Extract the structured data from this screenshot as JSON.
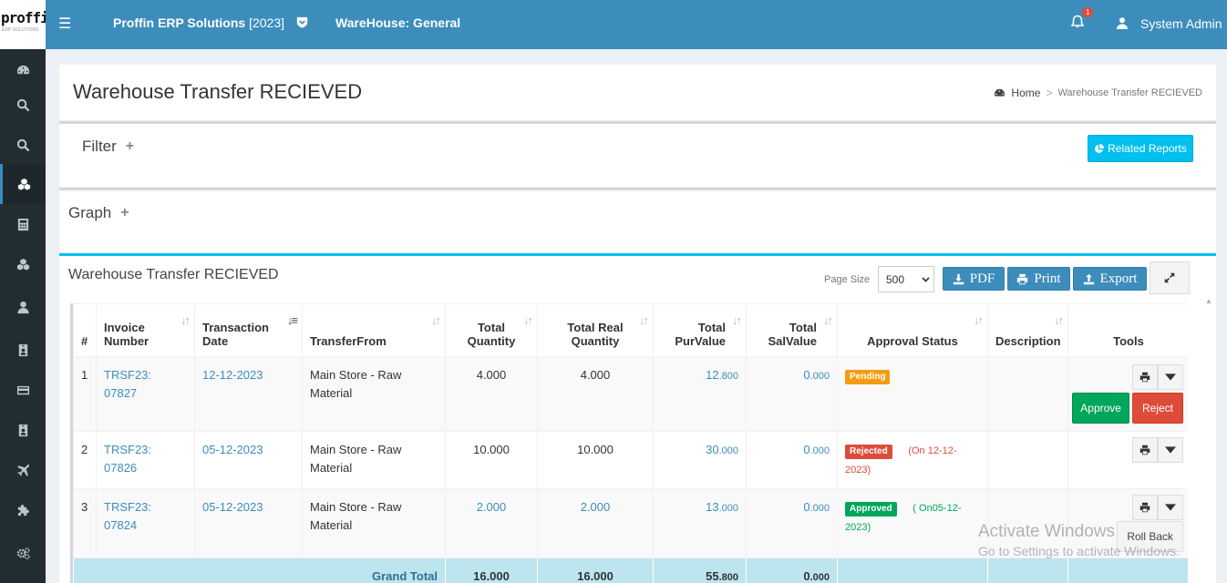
{
  "header": {
    "logo_text": "proffin",
    "logo_sub": "ERP SOLUTIONS",
    "app_title": "Proffin ERP Solutions",
    "app_year": "[2023]",
    "warehouse": "WareHouse: General",
    "notification_count": "1",
    "user": "System Admin"
  },
  "sidebar": {
    "items": [
      {
        "icon": "dashboard-icon"
      },
      {
        "icon": "search-icon"
      },
      {
        "icon": "search-icon"
      },
      {
        "icon": "cubes-icon",
        "active": true
      },
      {
        "icon": "calculator-icon"
      },
      {
        "icon": "cubes-icon"
      },
      {
        "icon": "user-icon"
      },
      {
        "icon": "id-card-icon"
      },
      {
        "icon": "credit-card-icon"
      },
      {
        "icon": "id-card-icon"
      },
      {
        "icon": "plane-icon"
      },
      {
        "icon": "puzzle-icon"
      },
      {
        "icon": "cogs-icon"
      }
    ]
  },
  "page": {
    "title": "Warehouse Transfer RECIEVED",
    "breadcrumb_home": "Home",
    "breadcrumb_sep": ">",
    "breadcrumb_current": "Warehouse Transfer RECIEVED"
  },
  "filter": {
    "title": "Filter",
    "plus": "+",
    "related_reports": "Related Reports"
  },
  "graph": {
    "title": "Graph",
    "plus": "+"
  },
  "report": {
    "title": "Warehouse Transfer RECIEVED",
    "page_size_label": "Page Size",
    "page_size": "500",
    "pdf": "PDF",
    "print": "Print",
    "export": "Export"
  },
  "table": {
    "columns": {
      "num": "#",
      "invoice": "Invoice Number",
      "date": "Transaction Date",
      "from": "TransferFrom",
      "total_qty": "Total Quantity",
      "real_qty": "Total Real Quantity",
      "pur": "Total PurValue",
      "sal": "Total SalValue",
      "status": "Approval Status",
      "desc": "Description",
      "tools": "Tools"
    },
    "rows": [
      {
        "num": "1",
        "invoice": "TRSF23: 07827",
        "date": "12-12-2023",
        "from": "Main Store - Raw Material",
        "total_qty": "4.000",
        "real_qty": "4.000",
        "pur_int": "12",
        "pur_dec": ".800",
        "sal_int": "0",
        "sal_dec": ".000",
        "status": "Pending",
        "status_note": "",
        "approve": "Approve",
        "reject": "Reject"
      },
      {
        "num": "2",
        "invoice": "TRSF23: 07826",
        "date": "05-12-2023",
        "from": "Main Store - Raw Material",
        "total_qty": "10.000",
        "real_qty": "10.000",
        "pur_int": "30",
        "pur_dec": ".000",
        "sal_int": "0",
        "sal_dec": ".000",
        "status": "Rejected",
        "status_note": "(On 12-12-2023)"
      },
      {
        "num": "3",
        "invoice": "TRSF23: 07824",
        "date": "05-12-2023",
        "from": "Main Store - Raw Material",
        "total_qty": "2.000",
        "real_qty": "2.000",
        "pur_int": "13",
        "pur_dec": ".000",
        "sal_int": "0",
        "sal_dec": ".000",
        "status": "Approved",
        "status_note": "( On05-12-2023)",
        "rollback": "Roll Back"
      }
    ],
    "total": {
      "label": "Grand Total",
      "total_qty": "16.000",
      "real_qty": "16.000",
      "pur_int": "55",
      "pur_dec": ".800",
      "sal_int": "0",
      "sal_dec": ".000"
    }
  },
  "watermark": {
    "line1": "Activate Windows",
    "line2": "Go to Settings to activate Windows."
  },
  "colors": {
    "header": "#3c8dbc",
    "sidebar": "#222d32",
    "info": "#00c0ef",
    "success": "#00a65a",
    "danger": "#dd4b39",
    "warning": "#f39c12"
  }
}
